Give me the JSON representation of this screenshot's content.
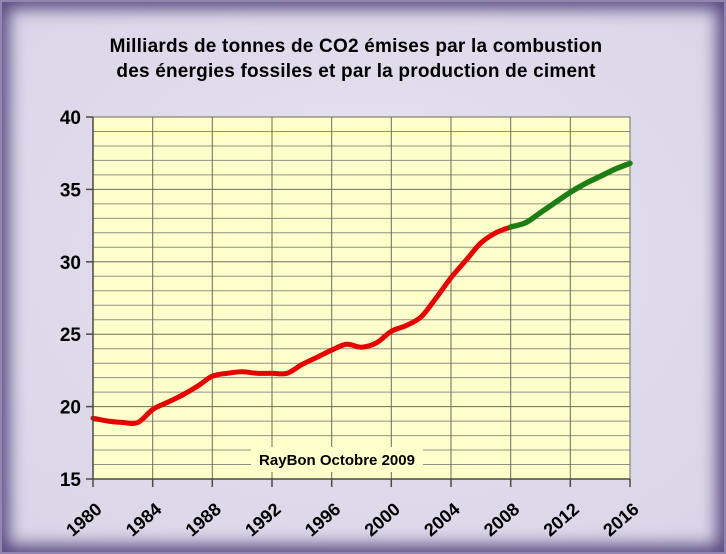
{
  "page": {
    "frame_outer_border_color": "#9186b0",
    "frame_vignette_color": "#584a82",
    "frame_background_color": "#dbd6e8"
  },
  "title_lines": [
    "Milliards de tonnes de CO2 émises par la combustion",
    "des énergies fossiles et par la production de ciment"
  ],
  "chart_data": {
    "type": "line",
    "title": "Milliards de tonnes de CO2 émises par la combustion des énergies fossiles et par la production de ciment",
    "annotation": "RayBon Octobre 2009",
    "xlabel": "",
    "ylabel": "",
    "plot_background": "#ffffcc",
    "grid": "on",
    "legend_position": "none",
    "gridline_minor_color": "#90908a",
    "gridline_major_color": "#6b6b60",
    "axis_color": "#4a4a42",
    "text_color": "#000000",
    "x_axis": {
      "min": 1980,
      "max": 2016,
      "ticks": [
        1980,
        1984,
        1988,
        1992,
        1996,
        2000,
        2004,
        2008,
        2012,
        2016
      ],
      "gridline_interval": 4,
      "label_rotation_deg": -41
    },
    "y_axis": {
      "min": 15,
      "max": 40,
      "ticks": [
        40,
        35,
        30,
        25,
        20,
        15
      ],
      "minor_interval": 1,
      "major_interval": 5
    },
    "series": [
      {
        "name": "red-line-historical",
        "color": "#e60000",
        "stroke_width": 5,
        "x": [
          1980,
          1981,
          1982,
          1983,
          1984,
          1985,
          1986,
          1987,
          1988,
          1989,
          1990,
          1991,
          1992,
          1993,
          1994,
          1995,
          1996,
          1997,
          1998,
          1999,
          2000,
          2001,
          2002,
          2003,
          2004,
          2005,
          2006,
          2007,
          2008
        ],
        "values": [
          19.2,
          19.0,
          18.9,
          18.9,
          19.8,
          20.3,
          20.8,
          21.4,
          22.1,
          22.3,
          22.4,
          22.3,
          22.3,
          22.3,
          22.9,
          23.4,
          23.9,
          24.3,
          24.1,
          24.4,
          25.2,
          25.6,
          26.2,
          27.5,
          28.9,
          30.1,
          31.3,
          32.0,
          32.4
        ]
      },
      {
        "name": "green-line-projection",
        "color": "#1e7d15",
        "stroke_width": 5.5,
        "x": [
          2008,
          2009,
          2010,
          2011,
          2012,
          2013,
          2014,
          2015,
          2016
        ],
        "values": [
          32.4,
          32.7,
          33.4,
          34.1,
          34.8,
          35.4,
          35.9,
          36.4,
          36.8
        ]
      }
    ]
  }
}
